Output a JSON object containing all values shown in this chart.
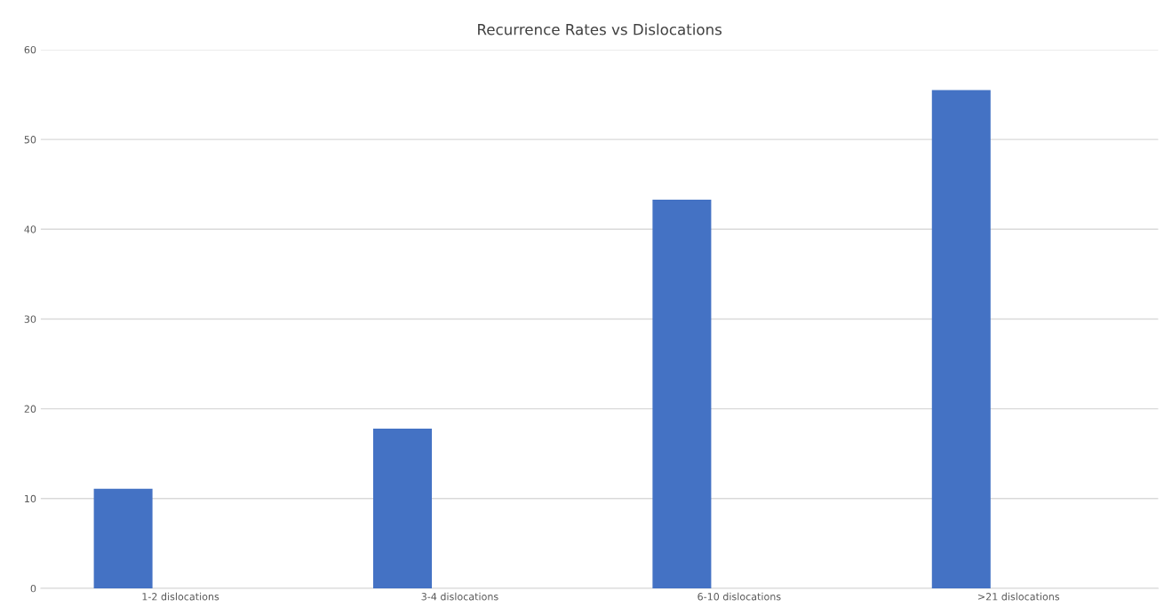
{
  "chart_data": {
    "type": "bar",
    "title": "Recurrence Rates vs Dislocations",
    "categories": [
      "1-2 dislocations",
      "3-4 dislocations",
      "6-10 dislocations",
      ">21 dislocations"
    ],
    "values": [
      11.1,
      17.8,
      43.3,
      55.5
    ],
    "color": "#4472c4",
    "ylim": [
      0,
      60
    ],
    "yticks": [
      0,
      10,
      20,
      30,
      40,
      50,
      60
    ],
    "grid": "y",
    "legend": false
  }
}
